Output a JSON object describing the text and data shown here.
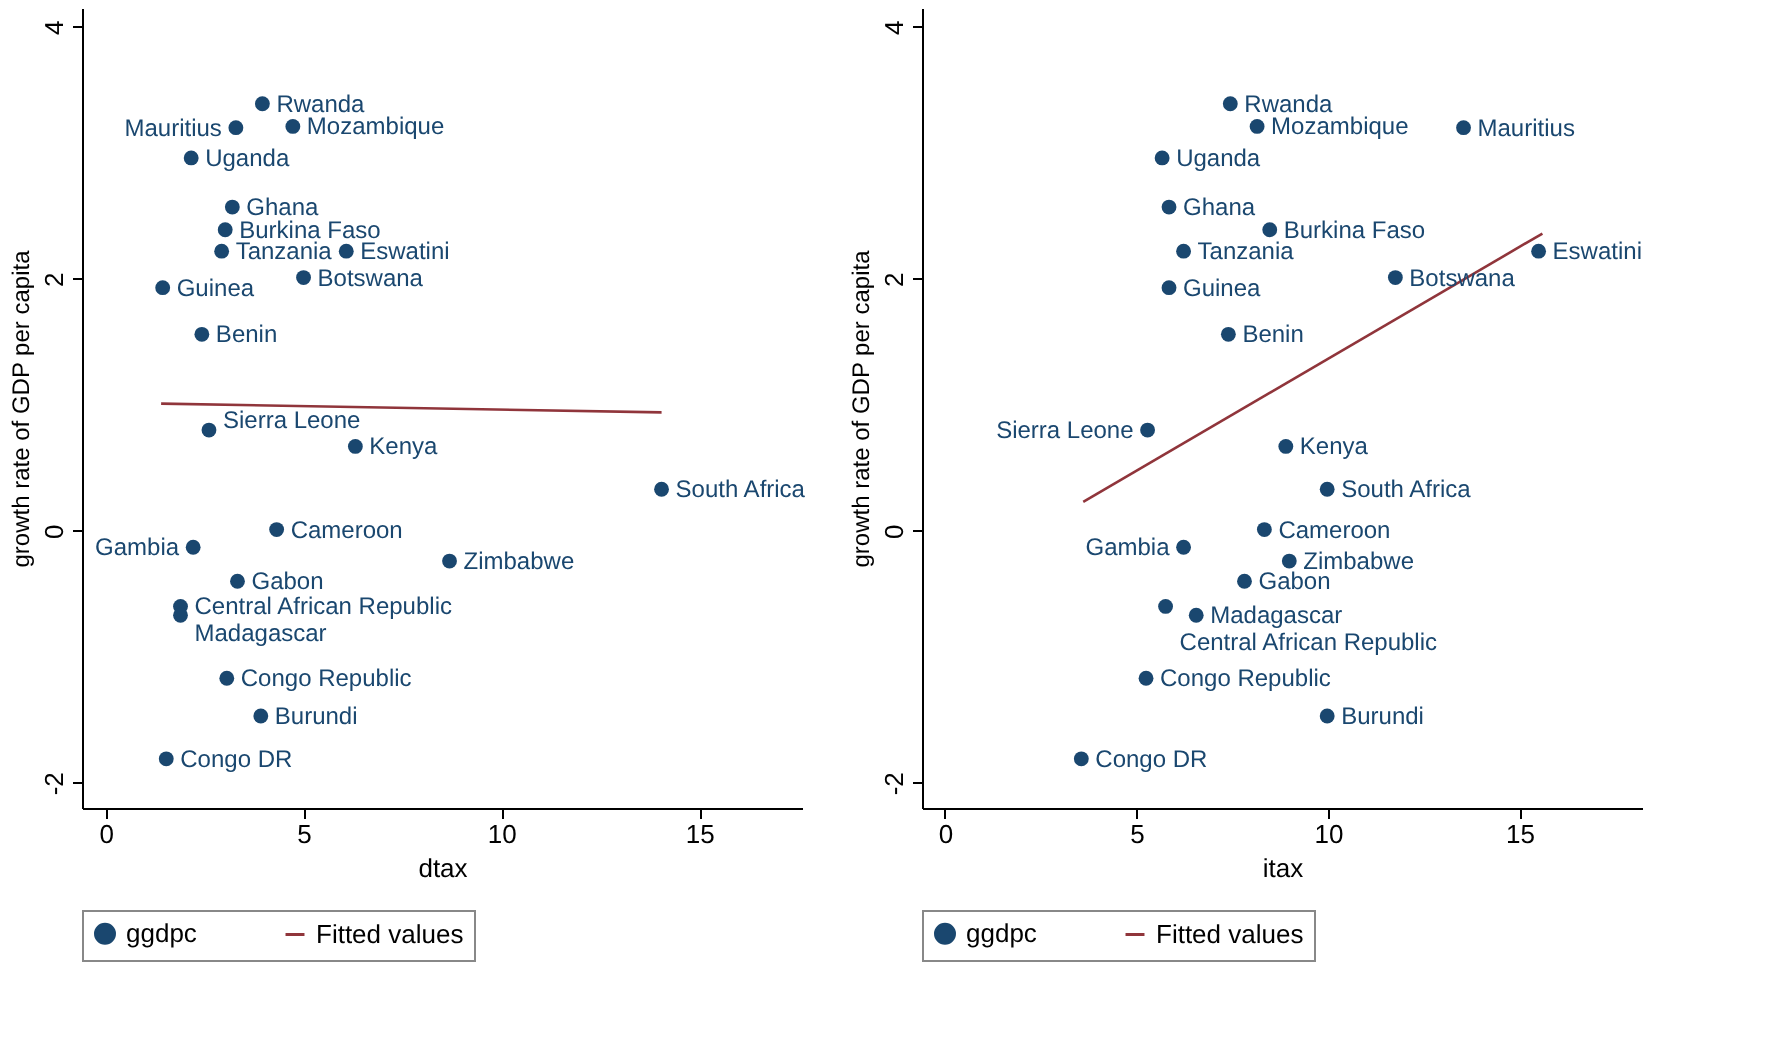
{
  "chart_data": [
    {
      "type": "scatter",
      "xlabel": "dtax",
      "ylabel": "growth rate of GDP per capita",
      "xlim": [
        -0.6,
        17.6
      ],
      "ylim": [
        -2.2,
        4.15
      ],
      "xticks": [
        0,
        5,
        10,
        15
      ],
      "yticks": [
        -2,
        0,
        2,
        4
      ],
      "grid": false,
      "legend": "bottom",
      "series": [
        {
          "name": "ggdpc",
          "type": "scatter",
          "marker": "circle",
          "color": "#1a476f",
          "x": [
            3.96,
            3.29,
            4.73,
            2.16,
            3.2,
            3.02,
            2.93,
            6.08,
            1.44,
            5.0,
            2.43,
            2.61,
            6.31,
            14.05,
            4.32,
            2.21,
            8.69,
            3.33,
            1.89,
            1.89,
            3.06,
            3.92,
            1.53
          ],
          "values": [
            3.39,
            3.2,
            3.21,
            2.96,
            2.57,
            2.39,
            2.22,
            2.22,
            1.93,
            2.01,
            1.56,
            0.8,
            0.67,
            0.33,
            0.01,
            -0.13,
            -0.24,
            -0.4,
            -0.6,
            -0.67,
            -1.17,
            -1.47,
            -1.81
          ]
        },
        {
          "name": "Fitted values",
          "type": "line",
          "marker": "none",
          "color": "#90353b",
          "x": [
            1.4,
            14.05
          ],
          "values": [
            1.01,
            0.94
          ]
        }
      ],
      "annotations": [
        {
          "text": "Rwanda",
          "x": 3.96,
          "y": 3.39
        },
        {
          "text": "Mauritius",
          "x": 3.29,
          "y": 3.2
        },
        {
          "text": "Mozambique",
          "x": 4.73,
          "y": 3.21
        },
        {
          "text": "Uganda",
          "x": 2.16,
          "y": 2.96
        },
        {
          "text": "Ghana",
          "x": 3.2,
          "y": 2.57
        },
        {
          "text": "Burkina Faso",
          "x": 3.02,
          "y": 2.39
        },
        {
          "text": "Tanzania",
          "x": 2.93,
          "y": 2.22
        },
        {
          "text": "Eswatini",
          "x": 6.08,
          "y": 2.22
        },
        {
          "text": "Guinea",
          "x": 1.44,
          "y": 1.93
        },
        {
          "text": "Botswana",
          "x": 5.0,
          "y": 2.01
        },
        {
          "text": "Benin",
          "x": 2.43,
          "y": 1.56
        },
        {
          "text": "Sierra Leone",
          "x": 2.61,
          "y": 0.8
        },
        {
          "text": "Kenya",
          "x": 6.31,
          "y": 0.67
        },
        {
          "text": "South Africa",
          "x": 14.05,
          "y": 0.33
        },
        {
          "text": "Cameroon",
          "x": 4.32,
          "y": 0.01
        },
        {
          "text": "Gambia",
          "x": 2.21,
          "y": -0.13
        },
        {
          "text": "Zimbabwe",
          "x": 8.69,
          "y": -0.24
        },
        {
          "text": "Gabon",
          "x": 3.33,
          "y": -0.4
        },
        {
          "text": "Central African Republic",
          "x": 1.89,
          "y": -0.6
        },
        {
          "text": "Madagascar",
          "x": 1.89,
          "y": -0.67
        },
        {
          "text": "Congo Republic",
          "x": 3.06,
          "y": -1.17
        },
        {
          "text": "Burundi",
          "x": 3.92,
          "y": -1.47
        },
        {
          "text": "Congo DR",
          "x": 1.53,
          "y": -1.81
        }
      ]
    },
    {
      "type": "scatter",
      "xlabel": "itax",
      "ylabel": "growth rate of GDP per capita",
      "xlim": [
        -0.6,
        18.2
      ],
      "ylim": [
        -2.2,
        4.15
      ],
      "xticks": [
        0,
        5,
        10,
        15
      ],
      "yticks": [
        -2,
        0,
        2,
        4
      ],
      "grid": false,
      "legend": "bottom",
      "series": [
        {
          "name": "ggdpc",
          "type": "scatter",
          "marker": "circle",
          "color": "#1a476f",
          "x": [
            7.45,
            8.15,
            13.54,
            5.67,
            5.85,
            8.48,
            6.23,
            15.5,
            5.85,
            11.76,
            7.4,
            5.29,
            8.9,
            9.98,
            8.34,
            6.23,
            8.99,
            7.82,
            5.76,
            6.56,
            5.25,
            9.98,
            3.56
          ],
          "values": [
            3.39,
            3.21,
            3.2,
            2.96,
            2.57,
            2.39,
            2.22,
            2.22,
            1.93,
            2.01,
            1.56,
            0.8,
            0.67,
            0.33,
            0.01,
            -0.13,
            -0.24,
            -0.4,
            -0.6,
            -0.67,
            -1.17,
            -1.47,
            -1.81
          ]
        },
        {
          "name": "Fitted values",
          "type": "line",
          "marker": "none",
          "color": "#90353b",
          "x": [
            3.61,
            15.6
          ],
          "values": [
            0.23,
            2.36
          ]
        }
      ],
      "annotations": [
        {
          "text": "Rwanda",
          "x": 7.45,
          "y": 3.39
        },
        {
          "text": "Mozambique",
          "x": 8.15,
          "y": 3.21
        },
        {
          "text": "Mauritius",
          "x": 13.54,
          "y": 3.2
        },
        {
          "text": "Uganda",
          "x": 5.67,
          "y": 2.96
        },
        {
          "text": "Ghana",
          "x": 5.85,
          "y": 2.57
        },
        {
          "text": "Burkina Faso",
          "x": 8.48,
          "y": 2.39
        },
        {
          "text": "Tanzania",
          "x": 6.23,
          "y": 2.22
        },
        {
          "text": "Eswatini",
          "x": 15.5,
          "y": 2.22
        },
        {
          "text": "Guinea",
          "x": 5.85,
          "y": 1.93
        },
        {
          "text": "Botswana",
          "x": 11.76,
          "y": 2.01
        },
        {
          "text": "Benin",
          "x": 7.4,
          "y": 1.56
        },
        {
          "text": "Sierra Leone",
          "x": 5.29,
          "y": 0.8
        },
        {
          "text": "Kenya",
          "x": 8.9,
          "y": 0.67
        },
        {
          "text": "South Africa",
          "x": 9.98,
          "y": 0.33
        },
        {
          "text": "Cameroon",
          "x": 8.34,
          "y": 0.01
        },
        {
          "text": "Gambia",
          "x": 6.23,
          "y": -0.13
        },
        {
          "text": "Zimbabwe",
          "x": 8.99,
          "y": -0.24
        },
        {
          "text": "Gabon",
          "x": 7.82,
          "y": -0.4
        },
        {
          "text": "Central African Republic",
          "x": 5.76,
          "y": -0.6
        },
        {
          "text": "Madagascar",
          "x": 6.56,
          "y": -0.67
        },
        {
          "text": "Congo Republic",
          "x": 5.25,
          "y": -1.17
        },
        {
          "text": "Burundi",
          "x": 9.98,
          "y": -1.47
        },
        {
          "text": "Congo DR",
          "x": 3.56,
          "y": -1.81
        }
      ]
    }
  ]
}
